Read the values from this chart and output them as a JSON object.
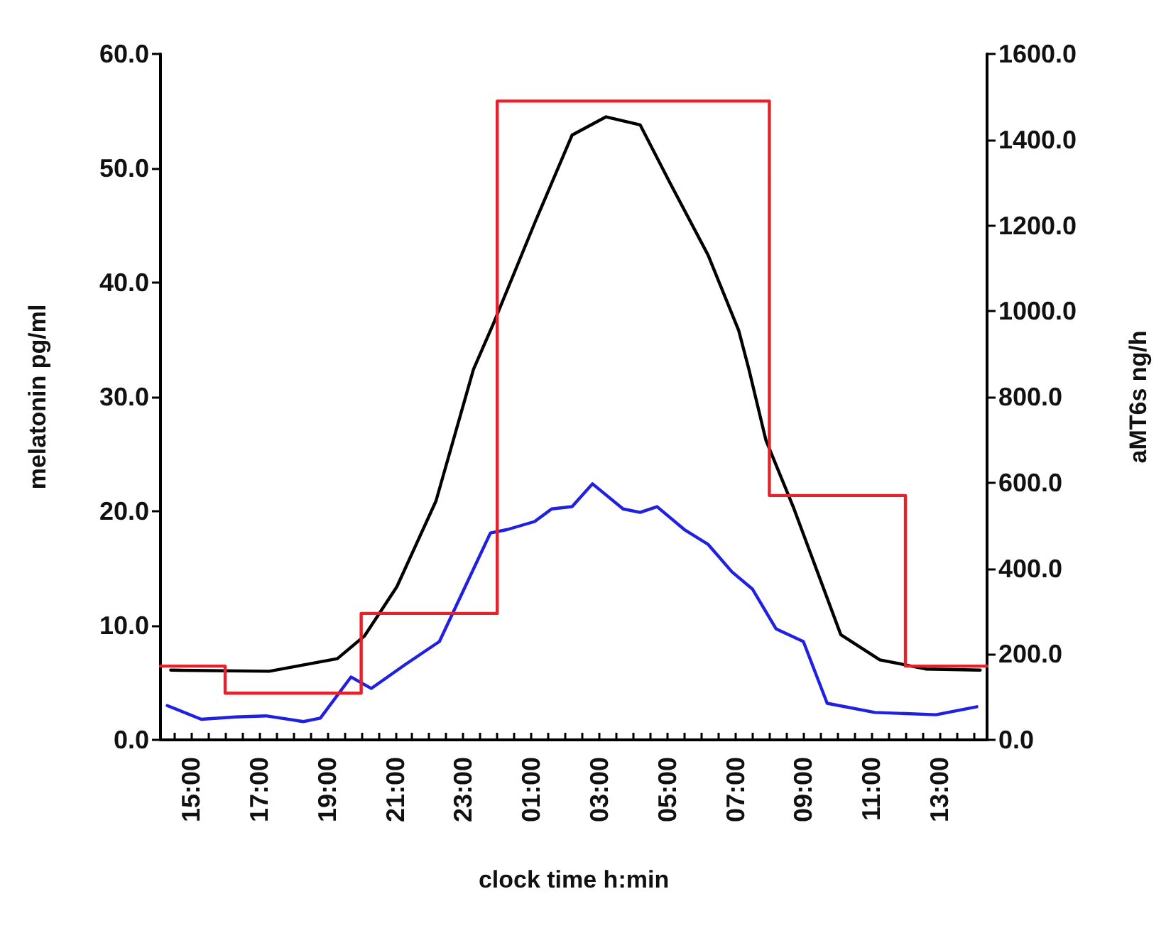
{
  "chart_data": {
    "type": "line",
    "xlabel": "clock time h:min",
    "ylabel": "melatonin pg/ml",
    "y2label": "aMT6s ng/h",
    "xlim": [
      "2000-01-01T14:06",
      "2000-01-02T14:24"
    ],
    "ylim": [
      0,
      60
    ],
    "y2lim": [
      0,
      1600
    ],
    "xticks": [
      {
        "value": "2000-01-01T14:30",
        "label": null
      },
      {
        "value": "2000-01-01T15:00",
        "label": "15:00"
      },
      {
        "value": "2000-01-01T15:30",
        "label": null
      },
      {
        "value": "2000-01-01T16:00",
        "label": null
      },
      {
        "value": "2000-01-01T16:30",
        "label": null
      },
      {
        "value": "2000-01-01T17:00",
        "label": "17:00"
      },
      {
        "value": "2000-01-01T17:30",
        "label": null
      },
      {
        "value": "2000-01-01T18:00",
        "label": null
      },
      {
        "value": "2000-01-01T18:30",
        "label": null
      },
      {
        "value": "2000-01-01T19:00",
        "label": "19:00"
      },
      {
        "value": "2000-01-01T19:30",
        "label": null
      },
      {
        "value": "2000-01-01T20:00",
        "label": null
      },
      {
        "value": "2000-01-01T20:30",
        "label": null
      },
      {
        "value": "2000-01-01T21:00",
        "label": "21:00"
      },
      {
        "value": "2000-01-01T21:30",
        "label": null
      },
      {
        "value": "2000-01-01T22:00",
        "label": null
      },
      {
        "value": "2000-01-01T22:30",
        "label": null
      },
      {
        "value": "2000-01-01T23:00",
        "label": "23:00"
      },
      {
        "value": "2000-01-01T23:30",
        "label": null
      },
      {
        "value": "2000-01-02T00:00",
        "label": null
      },
      {
        "value": "2000-01-02T00:30",
        "label": null
      },
      {
        "value": "2000-01-02T01:00",
        "label": "01:00"
      },
      {
        "value": "2000-01-02T01:30",
        "label": null
      },
      {
        "value": "2000-01-02T02:00",
        "label": null
      },
      {
        "value": "2000-01-02T02:30",
        "label": null
      },
      {
        "value": "2000-01-02T03:00",
        "label": "03:00"
      },
      {
        "value": "2000-01-02T03:30",
        "label": null
      },
      {
        "value": "2000-01-02T04:00",
        "label": null
      },
      {
        "value": "2000-01-02T04:30",
        "label": null
      },
      {
        "value": "2000-01-02T05:00",
        "label": "05:00"
      },
      {
        "value": "2000-01-02T05:30",
        "label": null
      },
      {
        "value": "2000-01-02T06:00",
        "label": null
      },
      {
        "value": "2000-01-02T06:30",
        "label": null
      },
      {
        "value": "2000-01-02T07:00",
        "label": "07:00"
      },
      {
        "value": "2000-01-02T07:30",
        "label": null
      },
      {
        "value": "2000-01-02T08:00",
        "label": null
      },
      {
        "value": "2000-01-02T08:30",
        "label": null
      },
      {
        "value": "2000-01-02T09:00",
        "label": "09:00"
      },
      {
        "value": "2000-01-02T09:30",
        "label": null
      },
      {
        "value": "2000-01-02T10:00",
        "label": null
      },
      {
        "value": "2000-01-02T10:30",
        "label": null
      },
      {
        "value": "2000-01-02T11:00",
        "label": "11:00"
      },
      {
        "value": "2000-01-02T11:30",
        "label": null
      },
      {
        "value": "2000-01-02T12:00",
        "label": null
      },
      {
        "value": "2000-01-02T12:30",
        "label": null
      },
      {
        "value": "2000-01-02T13:00",
        "label": "13:00"
      },
      {
        "value": "2000-01-02T13:30",
        "label": null
      },
      {
        "value": "2000-01-02T14:00",
        "label": null
      }
    ],
    "yticks": [
      {
        "value": 0,
        "label": "0.0"
      },
      {
        "value": 10,
        "label": "10.0"
      },
      {
        "value": 20,
        "label": "20.0"
      },
      {
        "value": 30,
        "label": "30.0"
      },
      {
        "value": 40,
        "label": "40.0"
      },
      {
        "value": 50,
        "label": "50.0"
      },
      {
        "value": 60,
        "label": "60.0"
      }
    ],
    "y2ticks": [
      {
        "value": 0,
        "label": "0.0"
      },
      {
        "value": 200,
        "label": "200.0"
      },
      {
        "value": 400,
        "label": "400.0"
      },
      {
        "value": 600,
        "label": "600.0"
      },
      {
        "value": 800,
        "label": "800.0"
      },
      {
        "value": 1000,
        "label": "1000.0"
      },
      {
        "value": 1200,
        "label": "1200.0"
      },
      {
        "value": 1400,
        "label": "1400.0"
      },
      {
        "value": 1600,
        "label": "1600.0"
      }
    ],
    "grid": false,
    "marker": "none",
    "line_style": "solid",
    "series": [
      {
        "color": "#000000",
        "x": [
          "2000-01-01T14:24",
          "2000-01-01T17:18",
          "2000-01-01T19:18",
          "2000-01-01T20:06",
          "2000-01-01T21:03",
          "2000-01-01T22:12",
          "2000-01-01T23:18",
          "2000-01-01T23:54",
          "2000-01-02T01:06",
          "2000-01-02T02:12",
          "2000-01-02T03:12",
          "2000-01-02T04:12",
          "2000-01-02T05:06",
          "2000-01-02T06:12",
          "2000-01-02T07:06",
          "2000-01-02T07:24",
          "2000-01-02T07:54",
          "2000-01-02T08:42",
          "2000-01-02T10:06",
          "2000-01-02T11:15",
          "2000-01-02T12:36",
          "2000-01-02T14:12"
        ],
        "values": [
          6.1,
          6.0,
          7.1,
          9.1,
          13.4,
          20.9,
          32.4,
          36.5,
          45.2,
          52.9,
          54.5,
          53.8,
          48.6,
          42.4,
          35.8,
          32.4,
          26.2,
          20.4,
          9.2,
          7.0,
          6.2,
          6.1
        ]
      },
      {
        "color": "#2020e0",
        "x": [
          "2000-01-01T14:18",
          "2000-01-01T15:18",
          "2000-01-01T16:18",
          "2000-01-01T17:12",
          "2000-01-01T18:18",
          "2000-01-01T18:48",
          "2000-01-01T19:42",
          "2000-01-01T20:18",
          "2000-01-01T21:18",
          "2000-01-01T22:18",
          "2000-01-01T23:48",
          "2000-01-02T00:18",
          "2000-01-02T01:06",
          "2000-01-02T01:36",
          "2000-01-02T02:12",
          "2000-01-02T02:48",
          "2000-01-02T03:42",
          "2000-01-02T04:12",
          "2000-01-02T04:42",
          "2000-01-02T05:30",
          "2000-01-02T06:12",
          "2000-01-02T06:54",
          "2000-01-02T07:30",
          "2000-01-02T08:12",
          "2000-01-02T09:00",
          "2000-01-02T09:42",
          "2000-01-02T11:06",
          "2000-01-02T12:54",
          "2000-01-02T14:06"
        ],
        "values": [
          3.0,
          1.8,
          2.0,
          2.1,
          1.6,
          1.9,
          5.5,
          4.5,
          6.6,
          8.6,
          18.1,
          18.4,
          19.1,
          20.2,
          20.4,
          22.4,
          20.2,
          19.9,
          20.4,
          18.4,
          17.1,
          14.7,
          13.2,
          9.7,
          8.6,
          3.2,
          2.4,
          2.2,
          2.9
        ]
      },
      {
        "type": "step",
        "axis": "y2",
        "color": "#e8202a",
        "x": [
          "2000-01-01T14:06",
          "2000-01-01T16:00",
          "2000-01-01T20:00",
          "2000-01-02T00:00",
          "2000-01-02T08:00",
          "2000-01-02T12:00",
          "2000-01-02T14:24"
        ],
        "values": [
          172,
          109,
          295,
          1490,
          570,
          172,
          172
        ]
      }
    ]
  }
}
